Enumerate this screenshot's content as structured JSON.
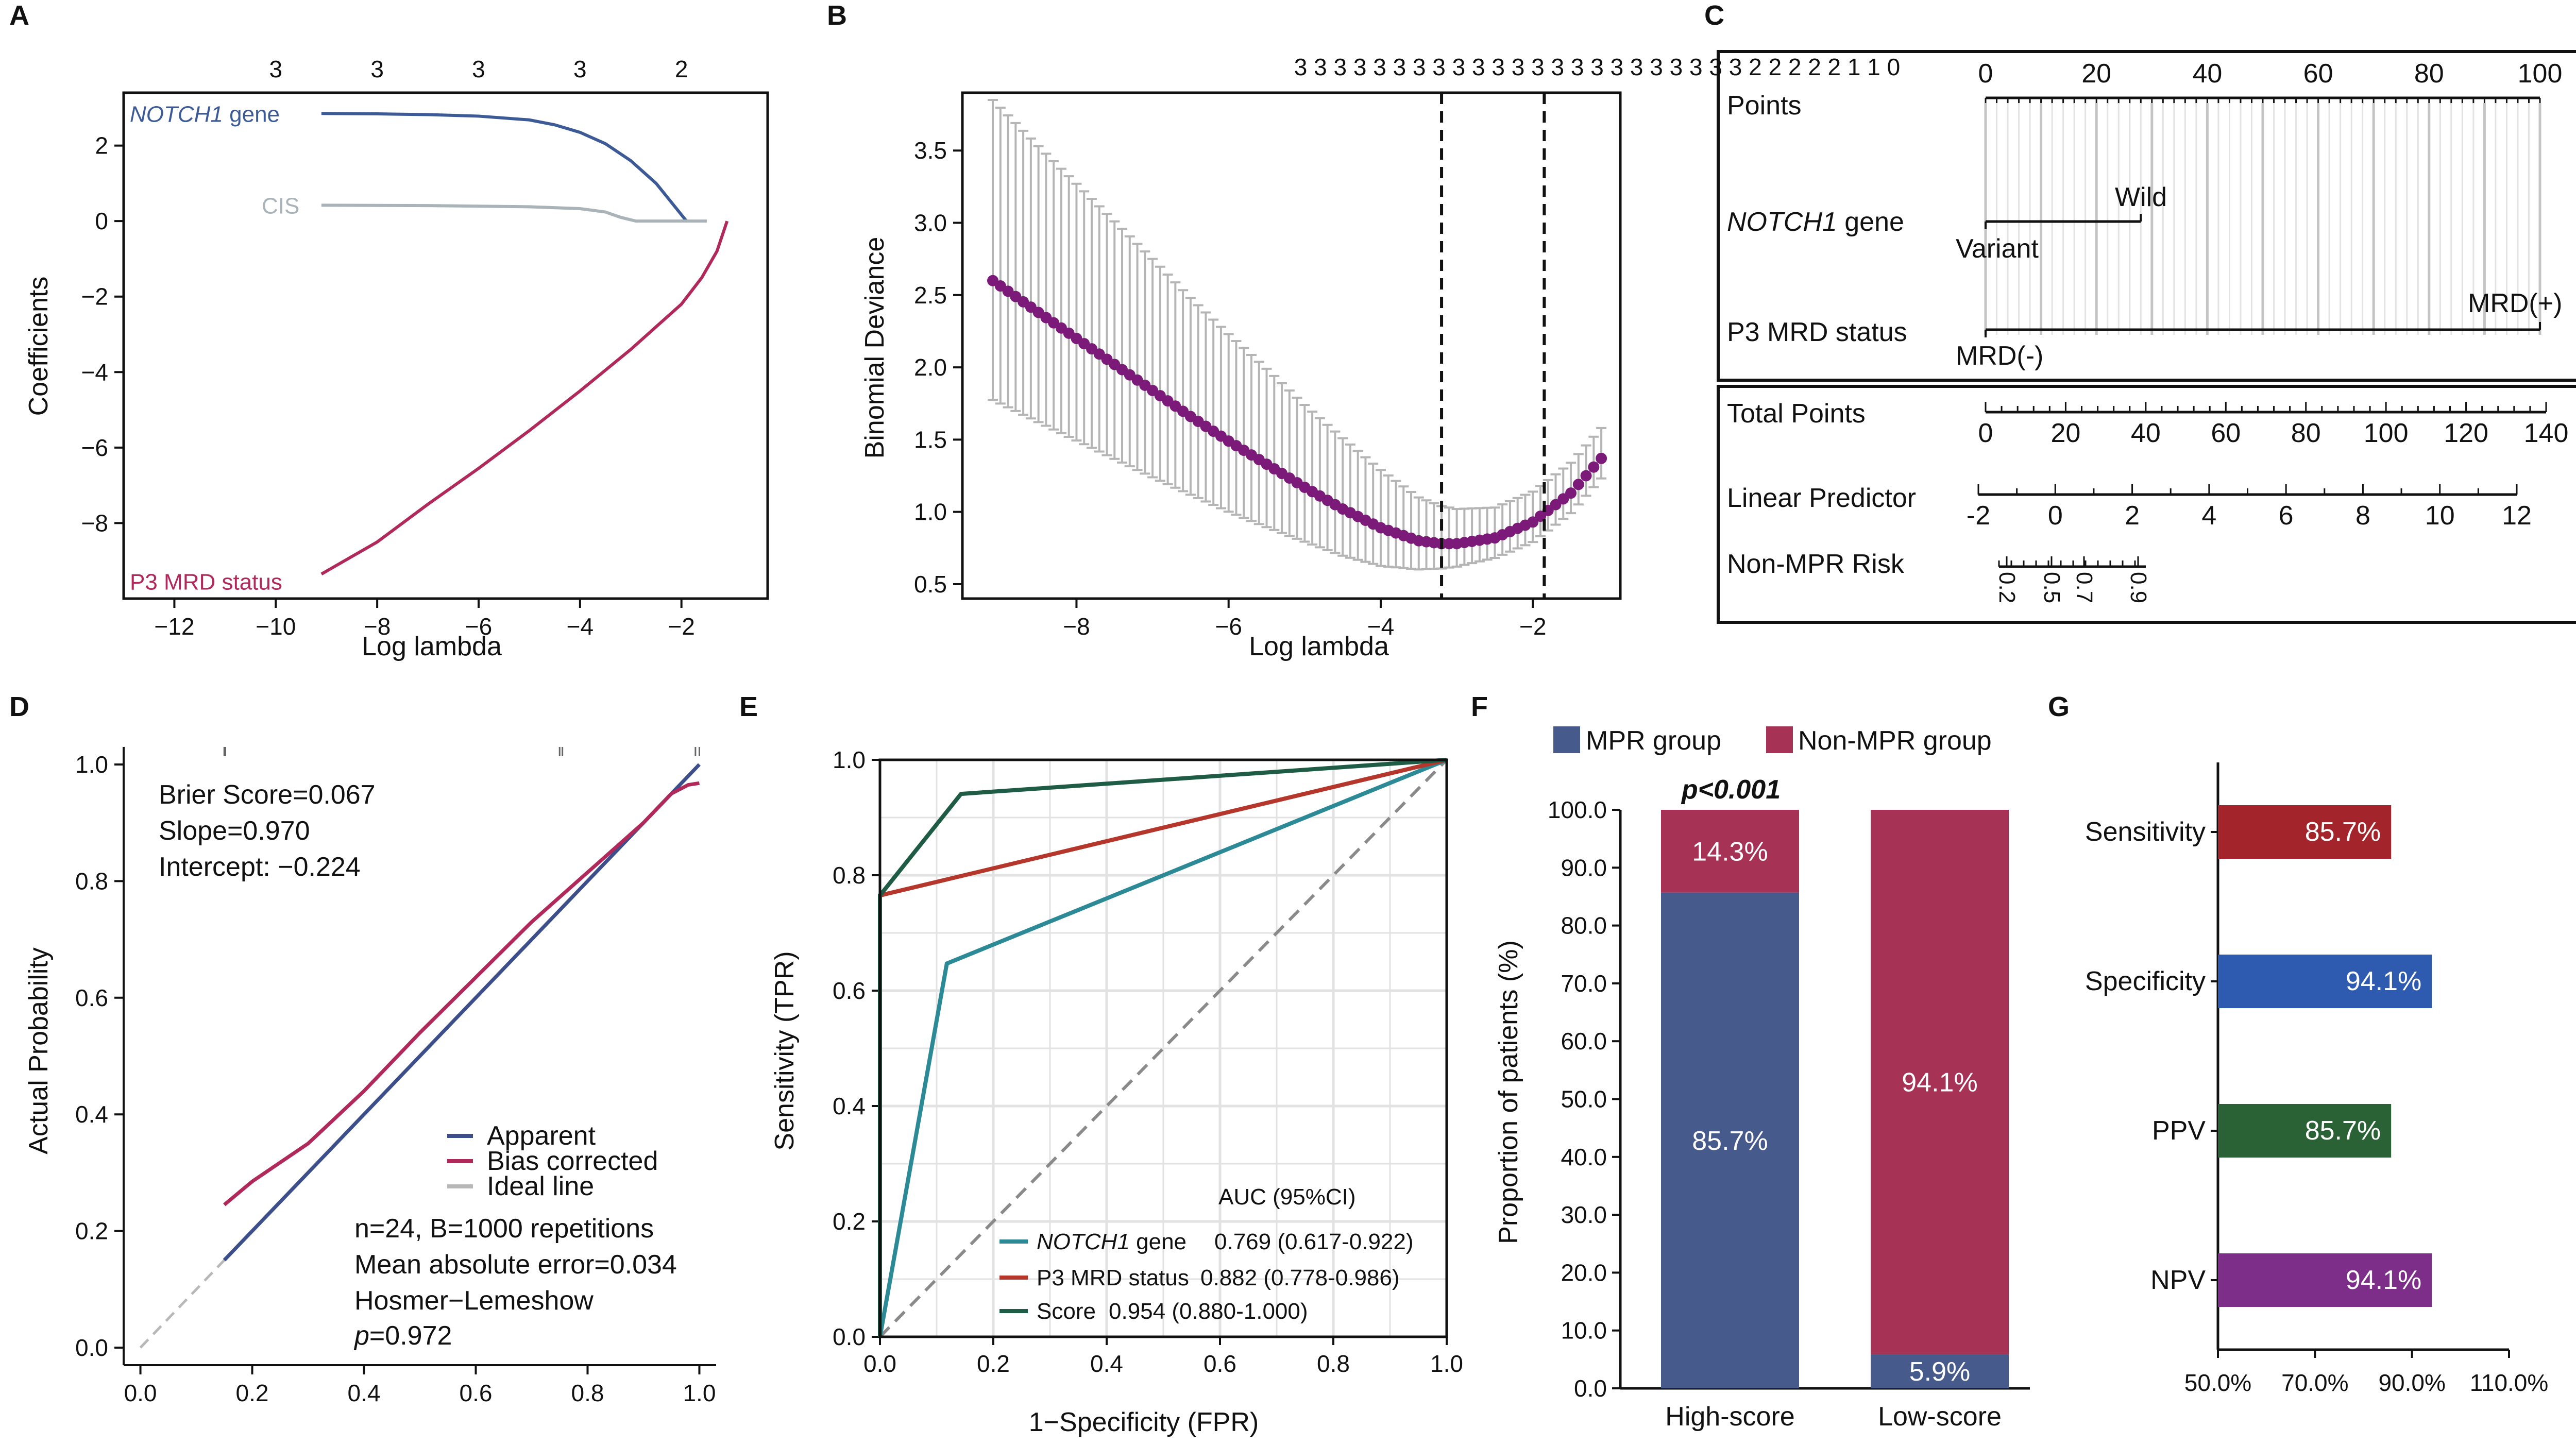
{
  "panels": {
    "A": {
      "label": "A",
      "chart_data": {
        "type": "line",
        "xlabel": "Log lambda",
        "ylabel": "Coefficients",
        "xlim": [
          -13,
          -0.3
        ],
        "ylim": [
          -10,
          3.4
        ],
        "xticks": [
          -12,
          -10,
          -8,
          -6,
          -4,
          -2
        ],
        "yticks": [
          -8,
          -6,
          -4,
          -2,
          0,
          2
        ],
        "top_axis_labels": [
          {
            "x": -10,
            "label": "3"
          },
          {
            "x": -8,
            "label": "3"
          },
          {
            "x": -6,
            "label": "3"
          },
          {
            "x": -4,
            "label": "3"
          },
          {
            "x": -2,
            "label": "2"
          }
        ],
        "series": [
          {
            "name": "NOTCH1 gene",
            "color": "#3c5a96",
            "x": [
              -9.1,
              -8,
              -7,
              -6,
              -5,
              -4.5,
              -4,
              -3.5,
              -3,
              -2.5,
              -2.2,
              -1.9
            ],
            "y": [
              2.85,
              2.84,
              2.82,
              2.78,
              2.68,
              2.55,
              2.35,
              2.05,
              1.6,
              1.0,
              0.5,
              0
            ]
          },
          {
            "name": "CIS",
            "color": "#a9b3b8",
            "x": [
              -9.1,
              -7,
              -5,
              -4,
              -3.5,
              -3.2,
              -2.9,
              -1.5
            ],
            "y": [
              0.42,
              0.41,
              0.38,
              0.33,
              0.24,
              0.1,
              0,
              0
            ]
          },
          {
            "name": "P3 MRD status",
            "color": "#b0295a",
            "x": [
              -9.1,
              -8,
              -7,
              -6,
              -5,
              -4,
              -3,
              -2,
              -1.6,
              -1.3,
              -1.1
            ],
            "y": [
              -9.35,
              -8.5,
              -7.5,
              -6.55,
              -5.55,
              -4.5,
              -3.4,
              -2.2,
              -1.5,
              -0.8,
              0
            ]
          }
        ]
      }
    },
    "B": {
      "label": "B",
      "chart_data": {
        "type": "line",
        "xlabel": "Log lambda",
        "ylabel": "Binomial Deviance",
        "xlim": [
          -9.5,
          -0.85
        ],
        "ylim": [
          0.4,
          3.9
        ],
        "xticks": [
          -8,
          -6,
          -4,
          -2
        ],
        "yticks": [
          0.5,
          1.0,
          1.5,
          2.0,
          2.5,
          3.0,
          3.5
        ],
        "top_axis_text": "3 3 3 3 3 3 3 3 3 3 3 3 3 3 3 3 3 3 3 3 3 3 3 2 2 2 2 2 1 1 0",
        "vlines": [
          -3.2,
          -1.85
        ],
        "series": [
          {
            "name": "",
            "color": "#7b1a78",
            "x": [
              -9.1,
              -8.5,
              -8,
              -7.5,
              -7,
              -6.5,
              -6,
              -5.5,
              -5,
              -4.5,
              -4,
              -3.5,
              -3.2,
              -3,
              -2.5,
              -2,
              -1.5,
              -1.1
            ],
            "y": [
              2.6,
              2.38,
              2.2,
              2.02,
              1.84,
              1.66,
              1.49,
              1.33,
              1.17,
              1.02,
              0.89,
              0.8,
              0.78,
              0.78,
              0.82,
              0.93,
              1.13,
              1.37
            ],
            "err": [
              1.25,
              1.15,
              1.07,
              0.99,
              0.91,
              0.82,
              0.74,
              0.66,
              0.57,
              0.49,
              0.4,
              0.3,
              0.26,
              0.24,
              0.21,
              0.21,
              0.21,
              0.21
            ]
          }
        ]
      }
    },
    "C": {
      "label": "C",
      "nomogram": {
        "rows": [
          {
            "label": "Points"
          },
          {
            "label_italic": "NOTCH1",
            "label": " gene",
            "levels": [
              "Wild",
              "Variant"
            ]
          },
          {
            "label": "P3 MRD status",
            "levels": [
              "MRD(+)",
              "MRD(-)"
            ]
          },
          {
            "label": "Total Points"
          },
          {
            "label": "Linear Predictor"
          },
          {
            "label": "Non-MPR Risk"
          }
        ],
        "points_ticks": [
          "0",
          "20",
          "40",
          "60",
          "80",
          "100"
        ],
        "total_points_ticks": [
          "0",
          "20",
          "40",
          "60",
          "80",
          "100",
          "120",
          "140"
        ],
        "linear_predictor_ticks": [
          "-2",
          "0",
          "2",
          "4",
          "6",
          "8",
          "10",
          "12"
        ],
        "risk_ticks": [
          "0.2",
          "0.5",
          "0.7",
          "0.9"
        ],
        "notch1_wild_points": 28,
        "mrd_pos_points": 100
      }
    },
    "D": {
      "label": "D",
      "chart_data": {
        "type": "line",
        "xlabel": "",
        "ylabel": "Actual Probability",
        "xlim": [
          -0.03,
          1.03
        ],
        "ylim": [
          -0.03,
          1.03
        ],
        "xticks": [
          "0.0",
          "0.2",
          "0.4",
          "0.6",
          "0.8",
          "1.0"
        ],
        "yticks": [
          "0.0",
          "0.2",
          "0.4",
          "0.6",
          "0.8",
          "1.0"
        ],
        "series": [
          {
            "name": "Apparent",
            "color": "#3c4f8a",
            "x": [
              0.15,
              1.0
            ],
            "y": [
              0.15,
              1.0
            ]
          },
          {
            "name": "Bias corrected",
            "color": "#b0295a",
            "x": [
              0.15,
              0.2,
              0.3,
              0.4,
              0.5,
              0.6,
              0.7,
              0.8,
              0.9,
              0.95,
              0.98,
              1.0
            ],
            "y": [
              0.245,
              0.285,
              0.35,
              0.44,
              0.54,
              0.635,
              0.73,
              0.815,
              0.9,
              0.95,
              0.965,
              0.968
            ]
          },
          {
            "name": "Ideal line",
            "color": "#b8b8b8",
            "x": [
              0,
              1.0
            ],
            "y": [
              0,
              1.0
            ]
          }
        ],
        "annotations": [
          "Brier Score=0.067",
          "Slope=0.970",
          "Intercept: −0.224"
        ],
        "footnotes": [
          "n=24, B=1000 repetitions",
          "Mean absolute error=0.034",
          "Hosmer−Lemeshow"
        ],
        "p_label": "p",
        "p_value": "=0.972"
      }
    },
    "E": {
      "label": "E",
      "chart_data": {
        "type": "line",
        "xlabel": "1−Specificity (FPR)",
        "ylabel": "Sensitivity (TPR)",
        "xlim": [
          0,
          1
        ],
        "ylim": [
          0,
          1
        ],
        "xticks": [
          "0.0",
          "0.2",
          "0.4",
          "0.6",
          "0.8",
          "1.0"
        ],
        "yticks": [
          "0.0",
          "0.2",
          "0.4",
          "0.6",
          "0.8",
          "1.0"
        ],
        "legend_title": "AUC (95%CI)",
        "series": [
          {
            "name_italic": "NOTCH1",
            "name": " gene",
            "auc": "0.769 (0.617-0.922)",
            "color": "#2b8a96",
            "x": [
              0,
              0.118,
              1
            ],
            "y": [
              0,
              0.647,
              1
            ]
          },
          {
            "name": "P3 MRD status",
            "auc": "0.882 (0.778-0.986)",
            "color": "#b5362a",
            "x": [
              0,
              0,
              1
            ],
            "y": [
              0,
              0.765,
              1
            ]
          },
          {
            "name": "Score",
            "auc": "0.954 (0.880-1.000)",
            "color": "#1f5c46",
            "x": [
              0,
              0,
              0.143,
              1
            ],
            "y": [
              0,
              0.765,
              0.941,
              1
            ]
          }
        ]
      }
    },
    "F": {
      "label": "F",
      "chart_data": {
        "type": "bar",
        "stacked": true,
        "categories": [
          "High-score",
          "Low-score"
        ],
        "ylabel": "Proportion of patients (%)",
        "ylim": [
          0,
          100
        ],
        "yticks": [
          "0.0",
          "10.0",
          "20.0",
          "30.0",
          "40.0",
          "50.0",
          "60.0",
          "70.0",
          "80.0",
          "90.0",
          "100.0"
        ],
        "p_label": "p<0.001",
        "series": [
          {
            "name": "MPR group",
            "color": "#465a8c",
            "values": [
              85.7,
              5.9
            ],
            "labels": [
              "85.7%",
              "5.9%"
            ]
          },
          {
            "name": "Non-MPR group",
            "color": "#a63256",
            "values": [
              14.3,
              94.1
            ],
            "labels": [
              "14.3%",
              "94.1%"
            ]
          }
        ]
      }
    },
    "G": {
      "label": "G",
      "chart_data": {
        "type": "bar",
        "orientation": "horizontal",
        "categories": [
          "Sensitivity",
          "Specificity",
          "PPV",
          "NPV"
        ],
        "values": [
          85.7,
          94.1,
          85.7,
          94.1
        ],
        "labels": [
          "85.7%",
          "94.1%",
          "85.7%",
          "94.1%"
        ],
        "colors": [
          "#a3252b",
          "#2e5bb0",
          "#2b6235",
          "#7d2e88"
        ],
        "xlim": [
          50,
          110
        ],
        "xticks": [
          "50.0%",
          "70.0%",
          "90.0%",
          "110.0%"
        ]
      }
    }
  }
}
